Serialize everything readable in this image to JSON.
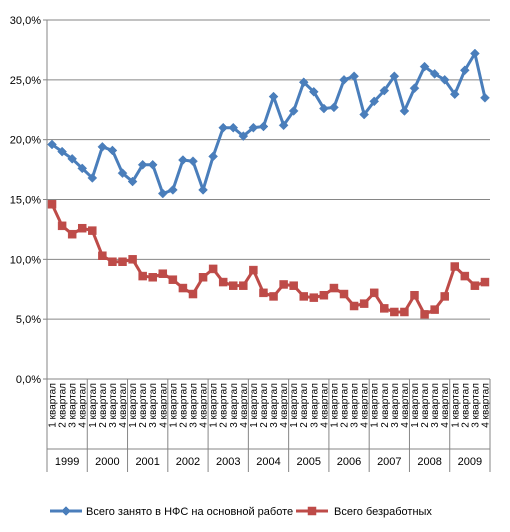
{
  "chart_data": {
    "type": "line",
    "title": "",
    "xlabel": "",
    "ylabel": "",
    "ylim": [
      0,
      30
    ],
    "y_ticks": [
      "0,0%",
      "5,0%",
      "10,0%",
      "15,0%",
      "20,0%",
      "25,0%",
      "30,0%"
    ],
    "quarter_labels": [
      "1 квартал",
      "2 квартал",
      "3 квартал",
      "4 квартал"
    ],
    "years": [
      "1999",
      "2000",
      "2001",
      "2002",
      "2003",
      "2004",
      "2005",
      "2006",
      "2007",
      "2008",
      "2009"
    ],
    "grid": "horizontal",
    "legend_position": "bottom",
    "series": [
      {
        "name": "Всего занято в НФС на основной работе",
        "color": "#4a7ebb",
        "marker": "diamond",
        "values": [
          19.6,
          19.0,
          18.4,
          17.6,
          16.8,
          19.4,
          19.1,
          17.2,
          16.5,
          17.9,
          17.9,
          15.5,
          15.8,
          18.3,
          18.2,
          15.8,
          18.6,
          21.0,
          21.0,
          20.3,
          21.0,
          21.1,
          23.6,
          21.2,
          22.4,
          24.8,
          24.0,
          22.6,
          22.7,
          25.0,
          25.3,
          22.1,
          23.2,
          24.1,
          25.3,
          22.4,
          24.3,
          26.1,
          25.5,
          25.0,
          23.8,
          25.8,
          27.2,
          23.5
        ]
      },
      {
        "name": "Всего безработных",
        "color": "#be4b48",
        "marker": "square",
        "values": [
          14.6,
          12.8,
          12.1,
          12.6,
          12.4,
          10.3,
          9.8,
          9.8,
          10.0,
          8.6,
          8.5,
          8.8,
          8.3,
          7.6,
          7.1,
          8.5,
          9.2,
          8.1,
          7.8,
          7.8,
          9.1,
          7.2,
          6.9,
          7.9,
          7.8,
          6.9,
          6.8,
          7.0,
          7.6,
          7.1,
          6.1,
          6.3,
          7.2,
          5.9,
          5.6,
          5.6,
          7.0,
          5.4,
          5.8,
          6.9,
          9.4,
          8.6,
          7.8,
          8.1
        ]
      }
    ]
  }
}
